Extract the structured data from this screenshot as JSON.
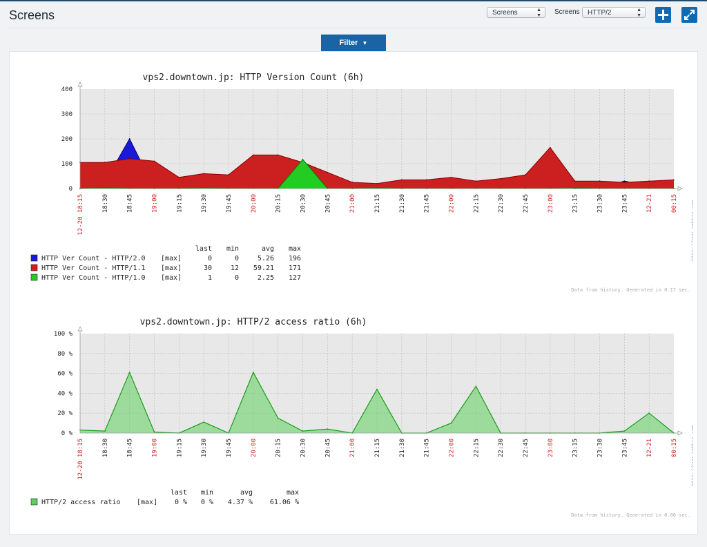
{
  "header": {
    "title": "Screens",
    "select1_value": "Screens",
    "select2_label": "Screens",
    "select2_value": "HTTP/2",
    "filter_label": "Filter"
  },
  "icons": {
    "add": "plus-icon",
    "fullscreen": "expand-icon",
    "filter": "caret-down-icon"
  },
  "colors": {
    "http20": "#1a1ad6",
    "http11": "#cc1f1f",
    "http10": "#22cc22",
    "grid_bg": "#e8e8e8",
    "red_tick": "#d22020"
  },
  "time_labels": [
    "12-20 18:15",
    "18:30",
    "18:45",
    "19:00",
    "19:15",
    "19:30",
    "19:45",
    "20:00",
    "20:15",
    "20:30",
    "20:45",
    "21:00",
    "21:15",
    "21:30",
    "21:45",
    "22:00",
    "22:15",
    "22:30",
    "22:45",
    "23:00",
    "23:15",
    "23:30",
    "23:45",
    "12-21",
    "00:15"
  ],
  "time_label_colors": [
    "red",
    "black",
    "black",
    "red",
    "black",
    "black",
    "black",
    "red",
    "black",
    "black",
    "black",
    "red",
    "black",
    "black",
    "black",
    "red",
    "black",
    "black",
    "black",
    "red",
    "black",
    "black",
    "black",
    "red",
    "red"
  ],
  "chart_data": [
    {
      "type": "area",
      "title": "vps2.downtown.jp: HTTP Version Count (6h)",
      "ylim": [
        0,
        400
      ],
      "y_ticks": [
        "400",
        "300",
        "200",
        "100",
        "0"
      ],
      "x": [
        "18:15",
        "18:30",
        "18:45",
        "19:00",
        "19:15",
        "19:30",
        "19:45",
        "20:00",
        "20:15",
        "20:30",
        "20:45",
        "21:00",
        "21:15",
        "21:30",
        "21:45",
        "22:00",
        "22:15",
        "22:30",
        "22:45",
        "23:00",
        "23:15",
        "23:30",
        "23:45",
        "00:00",
        "00:15"
      ],
      "series": [
        {
          "name": "HTTP Ver Count - HTTP/2.0",
          "values": [
            0,
            25,
            200,
            0,
            0,
            10,
            5,
            30,
            25,
            10,
            5,
            0,
            15,
            0,
            0,
            10,
            10,
            10,
            0,
            10,
            0,
            0,
            30,
            10,
            0
          ]
        },
        {
          "name": "HTTP Ver Count - HTTP/1.1",
          "values": [
            105,
            105,
            120,
            110,
            45,
            60,
            55,
            135,
            135,
            105,
            65,
            25,
            20,
            35,
            35,
            45,
            30,
            40,
            55,
            165,
            30,
            30,
            25,
            30,
            35
          ]
        },
        {
          "name": "HTTP Ver Count - HTTP/1.0",
          "values": [
            0,
            3,
            0,
            0,
            0,
            2,
            0,
            0,
            0,
            117,
            0,
            0,
            2,
            0,
            0,
            0,
            0,
            0,
            0,
            0,
            2,
            0,
            0,
            0,
            0
          ]
        }
      ],
      "legend": {
        "headers": [
          "last",
          "min",
          "avg",
          "max"
        ],
        "rows": [
          {
            "name": "HTTP Ver Count - HTTP/2.0",
            "func": "[max]",
            "last": "0",
            "min": "0",
            "avg": "5.26",
            "max": "196"
          },
          {
            "name": "HTTP Ver Count - HTTP/1.1",
            "func": "[max]",
            "last": "30",
            "min": "12",
            "avg": "59.21",
            "max": "171"
          },
          {
            "name": "HTTP Ver Count - HTTP/1.0",
            "func": "[max]",
            "last": "1",
            "min": "0",
            "avg": "2.25",
            "max": "127"
          }
        ]
      },
      "footer": "Data from history. Generated in 0.17 sec.",
      "watermark": "http://www.zabbix.com"
    },
    {
      "type": "area",
      "title": "vps2.downtown.jp: HTTP/2 access ratio (6h)",
      "ylim": [
        0,
        100
      ],
      "y_ticks": [
        "100 %",
        "80 %",
        "60 %",
        "40 %",
        "20 %",
        "0 %"
      ],
      "x": [
        "18:15",
        "18:30",
        "18:45",
        "19:00",
        "19:15",
        "19:30",
        "19:45",
        "20:00",
        "20:15",
        "20:30",
        "20:45",
        "21:00",
        "21:15",
        "21:30",
        "21:45",
        "22:00",
        "22:15",
        "22:30",
        "22:45",
        "23:00",
        "23:15",
        "23:30",
        "23:45",
        "00:00",
        "00:15"
      ],
      "series": [
        {
          "name": "HTTP/2 access ratio",
          "values": [
            3,
            2,
            61,
            1,
            0,
            11,
            0,
            61,
            15,
            2,
            4,
            0,
            44,
            0,
            0,
            10,
            47,
            0,
            0,
            0,
            0,
            0,
            2,
            20,
            0
          ]
        }
      ],
      "legend": {
        "headers": [
          "last",
          "min",
          "avg",
          "max"
        ],
        "rows": [
          {
            "name": "HTTP/2 access ratio",
            "func": "[max]",
            "last": "0 %",
            "min": "0 %",
            "avg": "4.37 %",
            "max": "61.06 %"
          }
        ]
      },
      "footer": "Data from history. Generated in 0.06 sec.",
      "watermark": "http://www.zabbix.com"
    }
  ]
}
